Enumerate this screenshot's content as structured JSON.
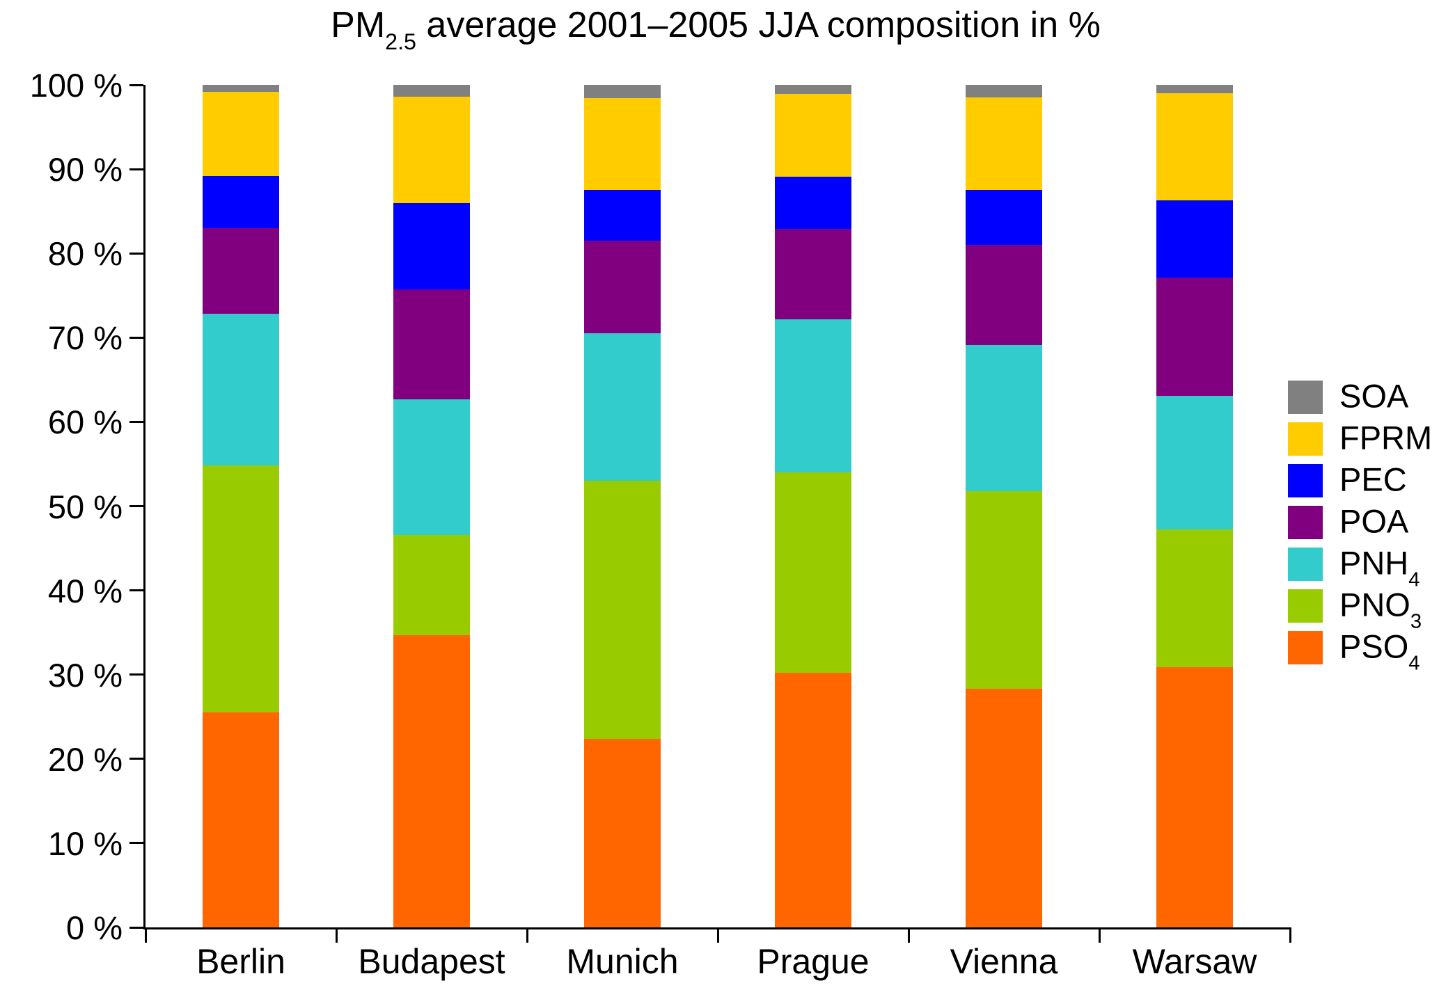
{
  "title": {
    "prefix": "PM",
    "sub": "2.5",
    "rest": " average 2001–2005 JJA composition in %"
  },
  "chart_data": {
    "type": "bar",
    "variant": "stacked-vertical",
    "title": "PM2.5 average 2001-2005 JJA composition in %",
    "xlabel": "",
    "ylabel": "",
    "ylim": [
      0,
      100
    ],
    "ytick_step": 10,
    "ytick_suffix": " %",
    "ytick_labels": [
      "0 %",
      "10 %",
      "20 %",
      "30 %",
      "40 %",
      "50 %",
      "60 %",
      "70 %",
      "80 %",
      "90 %",
      "100 %"
    ],
    "grid": false,
    "legend_position": "right",
    "legend_order_top_to_bottom": [
      "SOA",
      "FPRM",
      "PEC",
      "POA",
      "PNH4",
      "PNO3",
      "PSO4"
    ],
    "categories": [
      "Berlin",
      "Budapest",
      "Munich",
      "Prague",
      "Vienna",
      "Warsaw"
    ],
    "series": [
      {
        "name": "PSO4",
        "label": "PSO",
        "label_sub": "4",
        "color": "#FF6600",
        "values": [
          25.5,
          34.7,
          22.4,
          30.2,
          28.3,
          30.9
        ]
      },
      {
        "name": "PNO3",
        "label": "PNO",
        "label_sub": "3",
        "color": "#99CC00",
        "values": [
          29.3,
          11.9,
          30.6,
          23.8,
          23.5,
          16.3
        ]
      },
      {
        "name": "PNH4",
        "label": "PNH",
        "label_sub": "4",
        "color": "#33CCCC",
        "values": [
          18.0,
          16.1,
          17.5,
          18.2,
          17.3,
          15.9
        ]
      },
      {
        "name": "POA",
        "label": "POA",
        "label_sub": "",
        "color": "#800080",
        "values": [
          10.2,
          13.0,
          11.0,
          10.7,
          11.9,
          14.0
        ]
      },
      {
        "name": "PEC",
        "label": "PEC",
        "label_sub": "",
        "color": "#0000FF",
        "values": [
          6.2,
          10.3,
          6.0,
          6.2,
          6.5,
          9.2
        ]
      },
      {
        "name": "FPRM",
        "label": "FPRM",
        "label_sub": "",
        "color": "#FFCC00",
        "values": [
          10.0,
          12.6,
          10.9,
          9.8,
          11.0,
          12.7
        ]
      },
      {
        "name": "SOA",
        "label": "SOA",
        "label_sub": "",
        "color": "#808080",
        "values": [
          0.8,
          1.4,
          1.6,
          1.1,
          1.5,
          1.0
        ]
      }
    ],
    "colors": {
      "axis": "#000000",
      "background": "#FFFFFF",
      "text": "#000000"
    }
  }
}
